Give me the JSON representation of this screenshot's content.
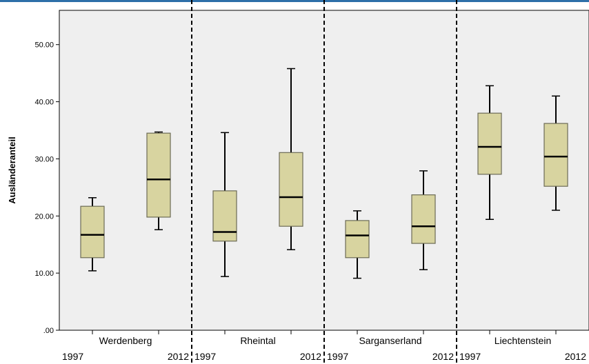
{
  "chart_data": {
    "type": "boxplot",
    "ylabel": "Ausländeranteil",
    "xlabel": "",
    "ylim": [
      0,
      56
    ],
    "y_ticks": [
      ".00",
      "10.00",
      "20.00",
      "30.00",
      "40.00",
      "50.00"
    ],
    "y_tick_values": [
      0,
      10,
      20,
      30,
      40,
      50
    ],
    "grid": false,
    "groups": [
      {
        "name": "Werdenberg",
        "boxes": [
          {
            "year": "1997",
            "min": 10.4,
            "q1": 12.7,
            "median": 16.7,
            "q3": 21.7,
            "max": 23.2
          },
          {
            "year": "2012",
            "min": 17.6,
            "q1": 19.8,
            "median": 26.4,
            "q3": 34.5,
            "max": 34.7
          }
        ]
      },
      {
        "name": "Rheintal",
        "boxes": [
          {
            "year": "1997",
            "min": 9.4,
            "q1": 15.6,
            "median": 17.2,
            "q3": 24.4,
            "max": 34.6
          },
          {
            "year": "2012",
            "min": 14.1,
            "q1": 18.2,
            "median": 23.3,
            "q3": 31.1,
            "max": 45.8
          }
        ]
      },
      {
        "name": "Sarganserland",
        "boxes": [
          {
            "year": "1997",
            "min": 9.1,
            "q1": 12.7,
            "median": 16.6,
            "q3": 19.2,
            "max": 20.9
          },
          {
            "year": "2012",
            "min": 10.6,
            "q1": 15.2,
            "median": 18.2,
            "q3": 23.7,
            "max": 27.9
          }
        ]
      },
      {
        "name": "Liechtenstein",
        "boxes": [
          {
            "year": "1997",
            "min": 19.4,
            "q1": 27.3,
            "median": 32.1,
            "q3": 38.0,
            "max": 42.8
          },
          {
            "year": "2012",
            "min": 21.0,
            "q1": 25.2,
            "median": 30.4,
            "q3": 36.2,
            "max": 41.0
          }
        ]
      }
    ],
    "colors": {
      "plot_background": "#efefef",
      "box_fill": "#d8d4a0",
      "box_stroke": "#6b6a55",
      "axis": "#000000",
      "top_bar": "#2e6fa8"
    }
  }
}
